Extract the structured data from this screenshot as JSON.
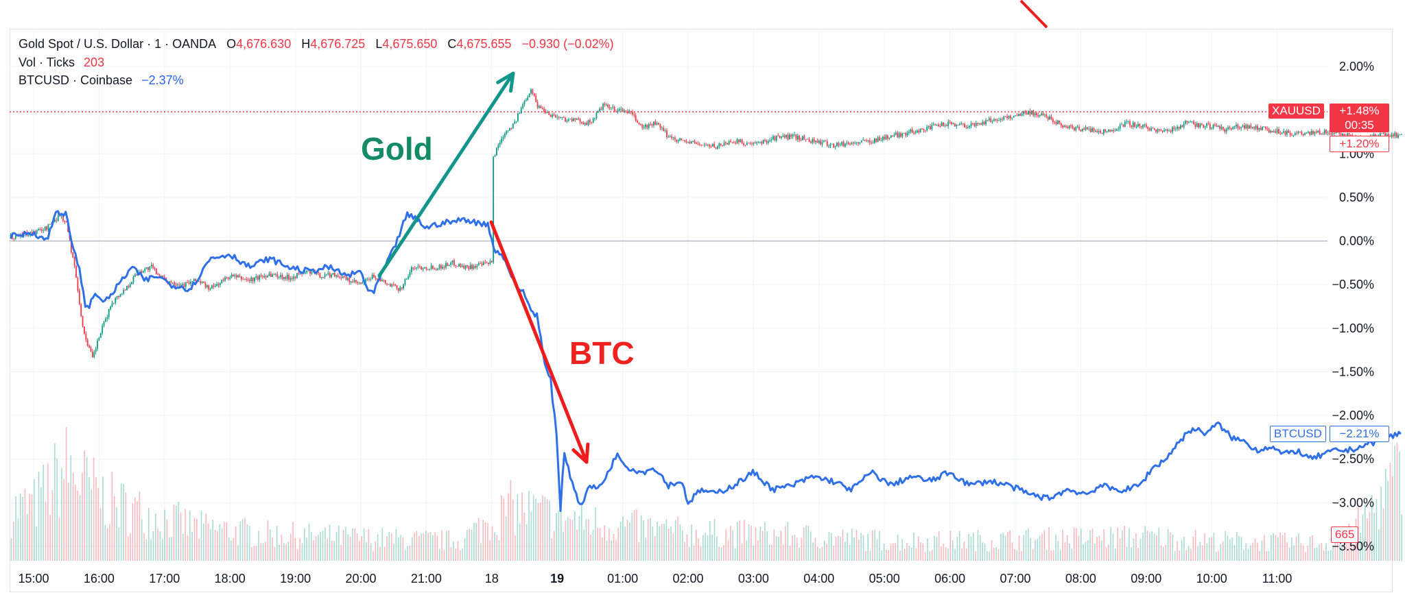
{
  "legend": {
    "symbol": "Gold Spot / U.S. Dollar · 1 · OANDA",
    "o_label": "O",
    "o_value": "4,676.630",
    "h_label": "H",
    "h_value": "4,676.725",
    "l_label": "L",
    "l_value": "4,675.650",
    "c_label": "C",
    "c_value": "4,675.655",
    "change": "−0.930 (−0.02%)",
    "vol_label": "Vol · Ticks",
    "vol_value": "203",
    "btc_label": "BTCUSD · Coinbase",
    "btc_value": "−2.37%"
  },
  "annotations": {
    "gold": "Gold",
    "btc": "BTC"
  },
  "tags": {
    "xau_name": "XAUUSD",
    "xau_value": "+1.48%",
    "xau_timer": "00:35",
    "xau_value2": "+1.20%",
    "btc_name": "BTCUSD",
    "btc_value": "−2.21%",
    "vol_value": "665"
  },
  "colors": {
    "gold_up": "#089981",
    "gold_down": "#f23645",
    "btc_line": "#2f6fe8",
    "annotation_gold": "#148a66",
    "annotation_btc": "#f0221f",
    "arrow_gold": "#12968c",
    "arrow_btc": "#ee1c1c"
  },
  "chart_data": {
    "type": "line",
    "y_axis": {
      "unit": "%",
      "range": [
        -3.6,
        2.1
      ],
      "ticks": [
        "2.00%",
        "1.50%",
        "1.00%",
        "0.50%",
        "0.00%",
        "−0.50%",
        "−1.00%",
        "−1.50%",
        "−2.00%",
        "−2.50%",
        "−3.00%",
        "−3.50%"
      ],
      "tick_values": [
        2.0,
        1.5,
        1.0,
        0.5,
        0.0,
        -0.5,
        -1.0,
        -1.5,
        -2.0,
        -2.5,
        -3.0,
        -3.5
      ]
    },
    "x_axis": {
      "ticks": [
        "15:00",
        "16:00",
        "17:00",
        "18:00",
        "19:00",
        "20:00",
        "21:00",
        "18",
        "19",
        "01:00",
        "02:00",
        "03:00",
        "04:00",
        "05:00",
        "06:00",
        "07:00",
        "08:00",
        "09:00",
        "10:00",
        "11:00"
      ],
      "bold_tick": "19",
      "range_hours": [
        -0.35,
        20.9
      ]
    },
    "series": [
      {
        "name": "XAUUSD",
        "style": "candles",
        "x": [
          -0.35,
          0.0,
          0.2,
          0.4,
          0.5,
          0.65,
          0.75,
          0.9,
          1.0,
          1.2,
          1.4,
          1.6,
          1.8,
          2.0,
          2.3,
          2.5,
          2.7,
          3.0,
          3.3,
          3.6,
          3.9,
          4.2,
          4.4,
          4.6,
          4.8,
          5.0,
          5.2,
          5.4,
          5.6,
          5.8,
          6.0,
          6.2,
          6.4,
          6.6,
          6.8,
          7.0,
          7.02,
          7.1,
          7.2,
          7.35,
          7.5,
          7.6,
          7.7,
          7.9,
          8.1,
          8.3,
          8.5,
          8.7,
          8.9,
          9.1,
          9.3,
          9.5,
          9.7,
          9.9,
          10.1,
          10.4,
          10.7,
          11.0,
          11.3,
          11.6,
          11.9,
          12.2,
          12.5,
          12.8,
          13.1,
          13.4,
          13.7,
          14.0,
          14.3,
          14.6,
          14.9,
          15.2,
          15.5,
          15.8,
          16.1,
          16.4,
          16.7,
          17.0,
          17.3,
          17.6,
          17.9,
          18.2,
          18.5,
          18.8,
          19.1,
          19.4,
          19.7,
          20.0,
          20.3,
          20.5,
          20.7,
          20.9
        ],
        "y": [
          0.05,
          0.1,
          0.15,
          0.3,
          0.2,
          -0.4,
          -1.0,
          -1.35,
          -1.1,
          -0.7,
          -0.55,
          -0.35,
          -0.3,
          -0.45,
          -0.5,
          -0.45,
          -0.55,
          -0.4,
          -0.45,
          -0.38,
          -0.42,
          -0.35,
          -0.4,
          -0.38,
          -0.45,
          -0.5,
          -0.4,
          -0.5,
          -0.55,
          -0.3,
          -0.3,
          -0.3,
          -0.25,
          -0.3,
          -0.28,
          -0.25,
          0.95,
          1.1,
          1.25,
          1.35,
          1.6,
          1.75,
          1.55,
          1.45,
          1.4,
          1.38,
          1.35,
          1.55,
          1.5,
          1.48,
          1.3,
          1.35,
          1.2,
          1.15,
          1.12,
          1.08,
          1.15,
          1.1,
          1.18,
          1.2,
          1.15,
          1.1,
          1.12,
          1.15,
          1.2,
          1.25,
          1.3,
          1.35,
          1.32,
          1.38,
          1.42,
          1.48,
          1.42,
          1.3,
          1.28,
          1.25,
          1.35,
          1.3,
          1.25,
          1.35,
          1.32,
          1.28,
          1.32,
          1.28,
          1.25,
          1.22,
          1.25,
          1.22,
          1.18,
          1.2,
          1.22,
          1.2
        ]
      },
      {
        "name": "BTCUSD",
        "style": "line",
        "x": [
          -0.35,
          0.0,
          0.2,
          0.35,
          0.5,
          0.6,
          0.7,
          0.8,
          0.95,
          1.1,
          1.3,
          1.5,
          1.7,
          1.9,
          2.1,
          2.4,
          2.7,
          3.0,
          3.3,
          3.6,
          3.9,
          4.2,
          4.5,
          4.8,
          5.0,
          5.1,
          5.2,
          5.3,
          5.5,
          5.7,
          5.85,
          6.0,
          6.2,
          6.4,
          6.6,
          6.8,
          6.95,
          7.0,
          7.05,
          7.2,
          7.35,
          7.5,
          7.6,
          7.7,
          7.8,
          7.9,
          8.0,
          8.05,
          8.1,
          8.2,
          8.3,
          8.35,
          8.5,
          8.6,
          8.75,
          8.9,
          9.1,
          9.3,
          9.5,
          9.7,
          9.9,
          10.0,
          10.2,
          10.4,
          10.7,
          11.0,
          11.3,
          11.6,
          11.9,
          12.2,
          12.5,
          12.8,
          13.1,
          13.4,
          13.7,
          14.0,
          14.3,
          14.6,
          14.9,
          15.2,
          15.5,
          15.8,
          16.1,
          16.3,
          16.5,
          16.7,
          16.9,
          17.1,
          17.3,
          17.5,
          17.7,
          17.9,
          18.1,
          18.3,
          18.5,
          18.7,
          18.9,
          19.1,
          19.3,
          19.5,
          19.7,
          19.9,
          20.1,
          20.3,
          20.5,
          20.7,
          20.9
        ],
        "y": [
          0.05,
          0.1,
          0.0,
          0.35,
          0.3,
          -0.1,
          -0.3,
          -0.8,
          -0.6,
          -0.7,
          -0.5,
          -0.3,
          -0.45,
          -0.4,
          -0.5,
          -0.55,
          -0.2,
          -0.15,
          -0.3,
          -0.2,
          -0.3,
          -0.35,
          -0.3,
          -0.4,
          -0.35,
          -0.55,
          -0.6,
          -0.4,
          -0.1,
          0.3,
          0.25,
          0.15,
          0.2,
          0.22,
          0.25,
          0.2,
          0.2,
          0.0,
          -0.1,
          -0.2,
          -0.5,
          -0.6,
          -0.8,
          -0.85,
          -1.4,
          -1.6,
          -2.3,
          -3.1,
          -2.4,
          -2.7,
          -2.9,
          -3.05,
          -2.8,
          -2.85,
          -2.7,
          -2.45,
          -2.6,
          -2.65,
          -2.6,
          -2.8,
          -2.75,
          -3.0,
          -2.85,
          -2.9,
          -2.8,
          -2.65,
          -2.85,
          -2.8,
          -2.7,
          -2.75,
          -2.85,
          -2.65,
          -2.8,
          -2.7,
          -2.75,
          -2.65,
          -2.8,
          -2.75,
          -2.8,
          -2.9,
          -2.95,
          -2.85,
          -2.9,
          -2.8,
          -2.85,
          -2.85,
          -2.8,
          -2.6,
          -2.5,
          -2.3,
          -2.15,
          -2.2,
          -2.1,
          -2.25,
          -2.3,
          -2.4,
          -2.35,
          -2.45,
          -2.4,
          -2.5,
          -2.45,
          -2.4,
          -2.4,
          -2.35,
          -2.3,
          -2.25,
          -2.2
        ]
      }
    ],
    "volume": {
      "name": "Vol · Ticks",
      "x": [
        -0.35,
        0.0,
        0.5,
        0.8,
        1.2,
        1.8,
        2.5,
        3.5,
        4.5,
        5.5,
        6.5,
        7.0,
        7.3,
        7.8,
        8.3,
        9.0,
        10.0,
        11.0,
        12.0,
        13.0,
        14.0,
        15.0,
        16.0,
        17.0,
        18.0,
        19.0,
        20.0,
        20.9
      ],
      "y": [
        380,
        420,
        700,
        560,
        430,
        340,
        250,
        200,
        180,
        160,
        150,
        310,
        400,
        350,
        300,
        260,
        210,
        200,
        180,
        150,
        150,
        160,
        170,
        180,
        150,
        140,
        130,
        665
      ]
    }
  }
}
